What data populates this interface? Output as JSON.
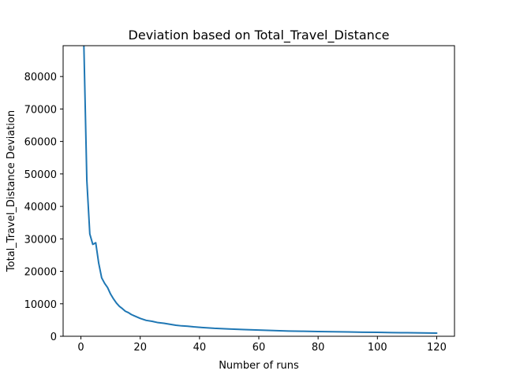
{
  "chart_data": {
    "type": "line",
    "title": "Deviation based on Total_Travel_Distance",
    "xlabel": "Number of runs",
    "ylabel": "Total_Travel_Distance Deviation",
    "xlim": [
      -6,
      126
    ],
    "ylim": [
      0,
      89500
    ],
    "xticks": [
      0,
      20,
      40,
      60,
      80,
      100,
      120
    ],
    "yticks": [
      0,
      10000,
      20000,
      30000,
      40000,
      50000,
      60000,
      70000,
      80000
    ],
    "grid": false,
    "legend": "none",
    "series_color": "#1f77b4",
    "series": [
      {
        "x": [
          1,
          2,
          3,
          4,
          5,
          6,
          7,
          8,
          9,
          10,
          11,
          12,
          13,
          14,
          15,
          16,
          17,
          18,
          19,
          20,
          22,
          24,
          26,
          28,
          30,
          32,
          34,
          36,
          38,
          40,
          45,
          50,
          55,
          60,
          65,
          70,
          75,
          80,
          85,
          90,
          95,
          100,
          105,
          110,
          115,
          120
        ],
        "y": [
          89500,
          48000,
          31500,
          28300,
          28800,
          22500,
          18000,
          16300,
          15000,
          13000,
          11500,
          10200,
          9200,
          8500,
          7700,
          7300,
          6700,
          6300,
          5900,
          5500,
          4900,
          4600,
          4200,
          4000,
          3700,
          3400,
          3200,
          3100,
          2900,
          2750,
          2450,
          2250,
          2050,
          1900,
          1750,
          1600,
          1550,
          1450,
          1400,
          1330,
          1250,
          1200,
          1130,
          1080,
          1030,
          980
        ]
      }
    ]
  }
}
